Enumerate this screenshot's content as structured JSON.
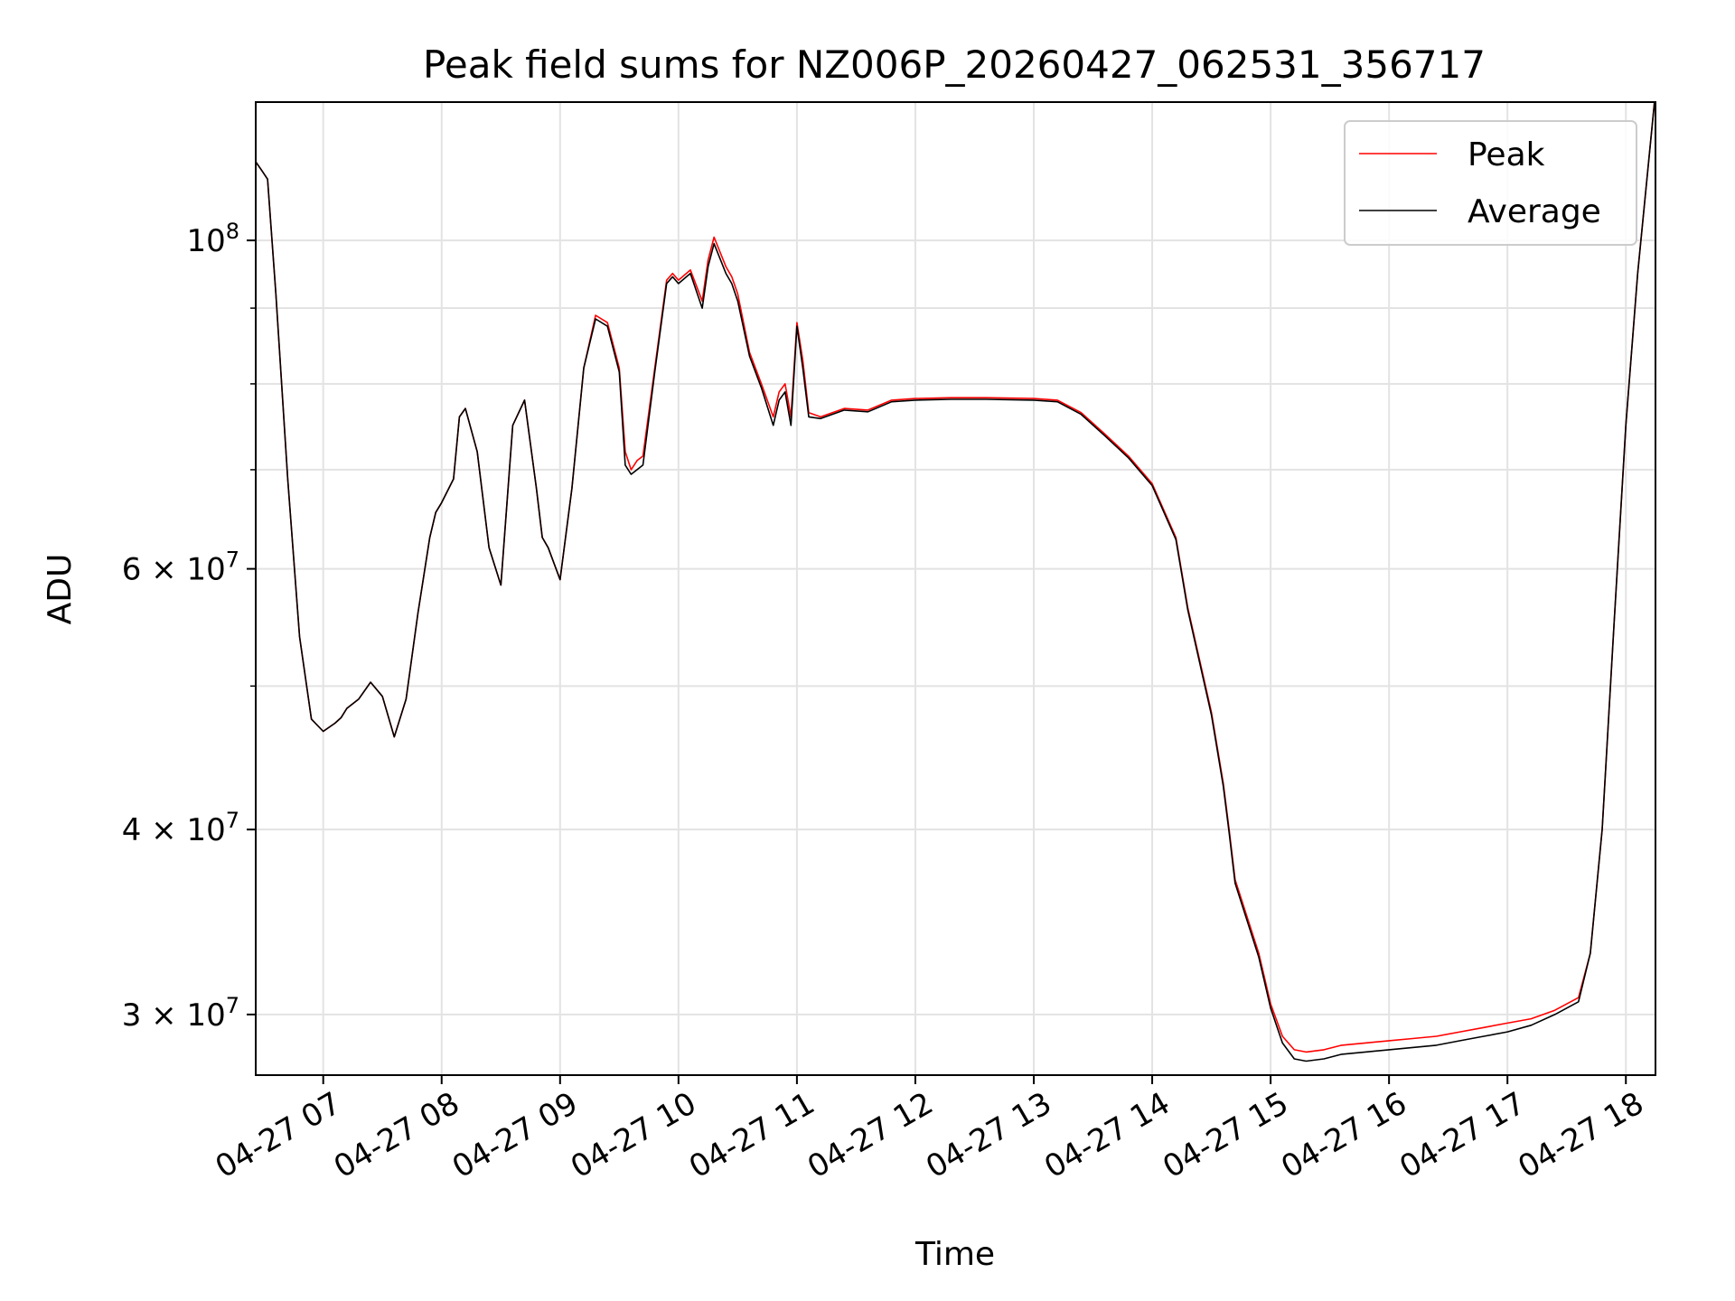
{
  "chart_data": {
    "type": "line",
    "title": "Peak field sums for NZ006P_20260427_062531_356717",
    "xlabel": "Time",
    "ylabel": "ADU",
    "yscale": "log",
    "grid": true,
    "legend_position": "top-right",
    "x_unit": "hours since 04-27 00:00",
    "xlim": [
      6.43,
      18.25
    ],
    "ylim": [
      27300000,
      124000000
    ],
    "x_tick_labels": [
      "04-27 07",
      "04-27 08",
      "04-27 09",
      "04-27 10",
      "04-27 11",
      "04-27 12",
      "04-27 13",
      "04-27 14",
      "04-27 15",
      "04-27 16",
      "04-27 17",
      "04-27 18"
    ],
    "x_ticks": [
      7,
      8,
      9,
      10,
      11,
      12,
      13,
      14,
      15,
      16,
      17,
      18
    ],
    "y_ticks": [
      {
        "value": 100000000,
        "base": "10",
        "exp": "8"
      },
      {
        "value": 60000000,
        "base": "6 × 10",
        "exp": "7"
      },
      {
        "value": 40000000,
        "base": "4 × 10",
        "exp": "7"
      },
      {
        "value": 30000000,
        "base": "3 × 10",
        "exp": "7"
      }
    ],
    "y_minor_ticks": [
      50000000,
      70000000,
      80000000,
      90000000
    ],
    "series": [
      {
        "name": "Peak",
        "color": "#ff0000",
        "x": [
          6.43,
          6.48,
          6.53,
          6.6,
          6.7,
          6.8,
          6.9,
          7.0,
          7.1,
          7.15,
          7.2,
          7.3,
          7.4,
          7.5,
          7.6,
          7.7,
          7.8,
          7.9,
          7.95,
          8.0,
          8.1,
          8.15,
          8.2,
          8.3,
          8.4,
          8.5,
          8.6,
          8.7,
          8.8,
          8.85,
          8.9,
          9.0,
          9.1,
          9.2,
          9.3,
          9.4,
          9.5,
          9.55,
          9.6,
          9.65,
          9.7,
          9.8,
          9.9,
          9.95,
          10.0,
          10.1,
          10.2,
          10.25,
          10.3,
          10.4,
          10.45,
          10.5,
          10.6,
          10.7,
          10.8,
          10.85,
          10.9,
          10.95,
          11.0,
          11.05,
          11.1,
          11.2,
          11.4,
          11.6,
          11.8,
          12.0,
          12.3,
          12.6,
          13.0,
          13.2,
          13.4,
          13.6,
          13.8,
          14.0,
          14.2,
          14.3,
          14.5,
          14.6,
          14.65,
          14.7,
          14.9,
          15.0,
          15.1,
          15.2,
          15.3,
          15.45,
          15.6,
          15.8,
          16.0,
          16.2,
          16.4,
          16.6,
          16.8,
          17.0,
          17.2,
          17.4,
          17.6,
          17.7,
          17.8,
          17.9,
          18.0,
          18.1,
          18.25
        ],
        "y": [
          113000000,
          111500000,
          110000000,
          92000000,
          69000000,
          54000000,
          47500000,
          46600000,
          47200000,
          47600000,
          48300000,
          49000000,
          50300000,
          49200000,
          46200000,
          49000000,
          56000000,
          63000000,
          65500000,
          66500000,
          69000000,
          76000000,
          77000000,
          72000000,
          62000000,
          58500000,
          75000000,
          78000000,
          68000000,
          63000000,
          62000000,
          59000000,
          68000000,
          82000000,
          89000000,
          88000000,
          82000000,
          72000000,
          70000000,
          71000000,
          71500000,
          82000000,
          94000000,
          95000000,
          94000000,
          95500000,
          91000000,
          97000000,
          100500000,
          96000000,
          94500000,
          92000000,
          84000000,
          80000000,
          76000000,
          79000000,
          80000000,
          76000000,
          88000000,
          83000000,
          76500000,
          76000000,
          77000000,
          76800000,
          78000000,
          78200000,
          78300000,
          78300000,
          78200000,
          78000000,
          76500000,
          74000000,
          71500000,
          68500000,
          63000000,
          56500000,
          48000000,
          43000000,
          40000000,
          37000000,
          33000000,
          30500000,
          29000000,
          28400000,
          28300000,
          28400000,
          28600000,
          28700000,
          28800000,
          28900000,
          29000000,
          29200000,
          29400000,
          29600000,
          29800000,
          30200000,
          30800000,
          33000000,
          40000000,
          55000000,
          75000000,
          95000000,
          126000000
        ]
      },
      {
        "name": "Average",
        "color": "#000000",
        "x": [
          6.43,
          6.48,
          6.53,
          6.6,
          6.7,
          6.8,
          6.9,
          7.0,
          7.1,
          7.15,
          7.2,
          7.3,
          7.4,
          7.5,
          7.6,
          7.7,
          7.8,
          7.9,
          7.95,
          8.0,
          8.1,
          8.15,
          8.2,
          8.3,
          8.4,
          8.5,
          8.6,
          8.7,
          8.8,
          8.85,
          8.9,
          9.0,
          9.1,
          9.2,
          9.3,
          9.4,
          9.5,
          9.55,
          9.6,
          9.65,
          9.7,
          9.8,
          9.9,
          9.95,
          10.0,
          10.1,
          10.2,
          10.25,
          10.3,
          10.4,
          10.45,
          10.5,
          10.6,
          10.7,
          10.8,
          10.85,
          10.9,
          10.95,
          11.0,
          11.05,
          11.1,
          11.2,
          11.4,
          11.6,
          11.8,
          12.0,
          12.3,
          12.6,
          13.0,
          13.2,
          13.4,
          13.6,
          13.8,
          14.0,
          14.2,
          14.3,
          14.5,
          14.6,
          14.65,
          14.7,
          14.9,
          15.0,
          15.1,
          15.2,
          15.3,
          15.45,
          15.6,
          15.8,
          16.0,
          16.2,
          16.4,
          16.6,
          16.8,
          17.0,
          17.2,
          17.4,
          17.6,
          17.7,
          17.8,
          17.9,
          18.0,
          18.1,
          18.25
        ],
        "y": [
          113000000,
          111500000,
          110000000,
          92000000,
          69000000,
          54000000,
          47500000,
          46600000,
          47200000,
          47600000,
          48300000,
          49000000,
          50300000,
          49200000,
          46200000,
          49000000,
          56000000,
          63000000,
          65500000,
          66500000,
          69000000,
          76000000,
          77000000,
          72000000,
          62000000,
          58500000,
          75000000,
          78000000,
          68000000,
          63000000,
          62000000,
          59000000,
          68000000,
          82000000,
          88500000,
          87500000,
          81500000,
          70500000,
          69500000,
          70000000,
          70500000,
          81500000,
          93500000,
          94500000,
          93500000,
          95000000,
          90000000,
          96000000,
          99500000,
          95000000,
          93500000,
          91000000,
          83500000,
          79500000,
          75000000,
          78000000,
          79000000,
          75000000,
          87500000,
          82000000,
          76000000,
          75800000,
          76800000,
          76600000,
          77800000,
          78000000,
          78100000,
          78100000,
          78000000,
          77800000,
          76300000,
          73800000,
          71300000,
          68300000,
          62800000,
          56300000,
          47800000,
          42800000,
          39800000,
          36800000,
          32800000,
          30300000,
          28700000,
          28000000,
          27900000,
          28000000,
          28200000,
          28300000,
          28400000,
          28500000,
          28600000,
          28800000,
          29000000,
          29200000,
          29500000,
          30000000,
          30600000,
          33000000,
          40000000,
          55000000,
          75000000,
          95000000,
          126000000
        ]
      }
    ]
  }
}
